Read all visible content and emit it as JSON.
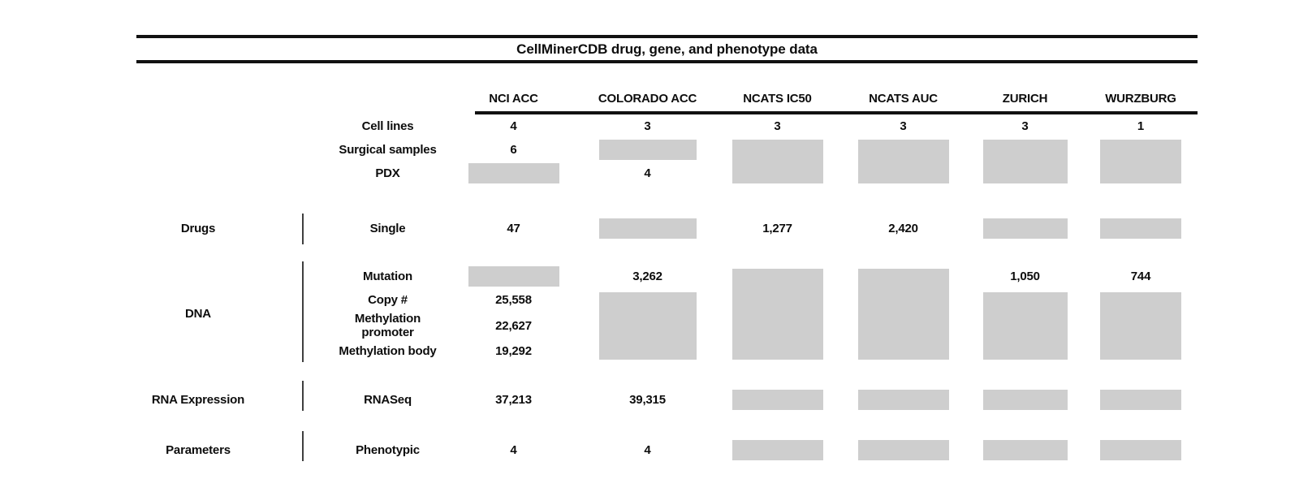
{
  "title": "CellMinerCDB drug, gene, and phenotype data",
  "columns": [
    "NCI ACC",
    "COLORADO ACC",
    "NCATS IC50",
    "NCATS AUC",
    "ZURICH",
    "WURZBURG"
  ],
  "colors": {
    "missing_box_fill": "#cecece",
    "rule": "#111111",
    "group_separator": "#3f3f3f"
  },
  "sections": [
    {
      "group": "",
      "rows": [
        {
          "label": "Cell lines",
          "cells": [
            {
              "value": "4"
            },
            {
              "value": "3"
            },
            {
              "value": "3"
            },
            {
              "value": "3"
            },
            {
              "value": "3"
            },
            {
              "value": "1"
            }
          ]
        },
        {
          "label": "Surgical samples",
          "cells": [
            {
              "value": "6"
            },
            {
              "box": 1
            },
            {
              "box": 2
            },
            {
              "box": 2
            },
            {
              "box": 2
            },
            {
              "box": 2
            }
          ]
        },
        {
          "label": "PDX",
          "cells": [
            {
              "box": 1
            },
            {
              "value": "4"
            },
            null,
            null,
            null,
            null
          ]
        }
      ]
    },
    {
      "group": "Drugs",
      "rows": [
        {
          "label": "Single",
          "cells": [
            {
              "value": "47"
            },
            {
              "box": 1
            },
            {
              "value": "1,277"
            },
            {
              "value": "2,420"
            },
            {
              "box": 1
            },
            {
              "box": 1
            }
          ]
        }
      ]
    },
    {
      "group": "DNA",
      "rows": [
        {
          "label": "Mutation",
          "cells": [
            {
              "box": 1
            },
            {
              "value": "3,262"
            },
            {
              "box": 4
            },
            {
              "box": 4
            },
            {
              "value": "1,050"
            },
            {
              "value": "744"
            }
          ]
        },
        {
          "label": "Copy #",
          "cells": [
            {
              "value": "25,558"
            },
            {
              "box": 3
            },
            null,
            null,
            {
              "box": 3
            },
            {
              "box": 3
            }
          ]
        },
        {
          "label": "Methylation promoter",
          "cells": [
            {
              "value": "22,627"
            },
            null,
            null,
            null,
            null,
            null
          ]
        },
        {
          "label": "Methylation body",
          "cells": [
            {
              "value": "19,292"
            },
            null,
            null,
            null,
            null,
            null
          ]
        }
      ]
    },
    {
      "group": "RNA Expression",
      "rows": [
        {
          "label": "RNASeq",
          "cells": [
            {
              "value": "37,213"
            },
            {
              "value": "39,315"
            },
            {
              "box": 1
            },
            {
              "box": 1
            },
            {
              "box": 1
            },
            {
              "box": 1
            }
          ]
        }
      ]
    },
    {
      "group": "Parameters",
      "rows": [
        {
          "label": "Phenotypic",
          "cells": [
            {
              "value": "4"
            },
            {
              "value": "4"
            },
            {
              "box": 1
            },
            {
              "box": 1
            },
            {
              "box": 1
            },
            {
              "box": 1
            }
          ]
        }
      ]
    }
  ]
}
